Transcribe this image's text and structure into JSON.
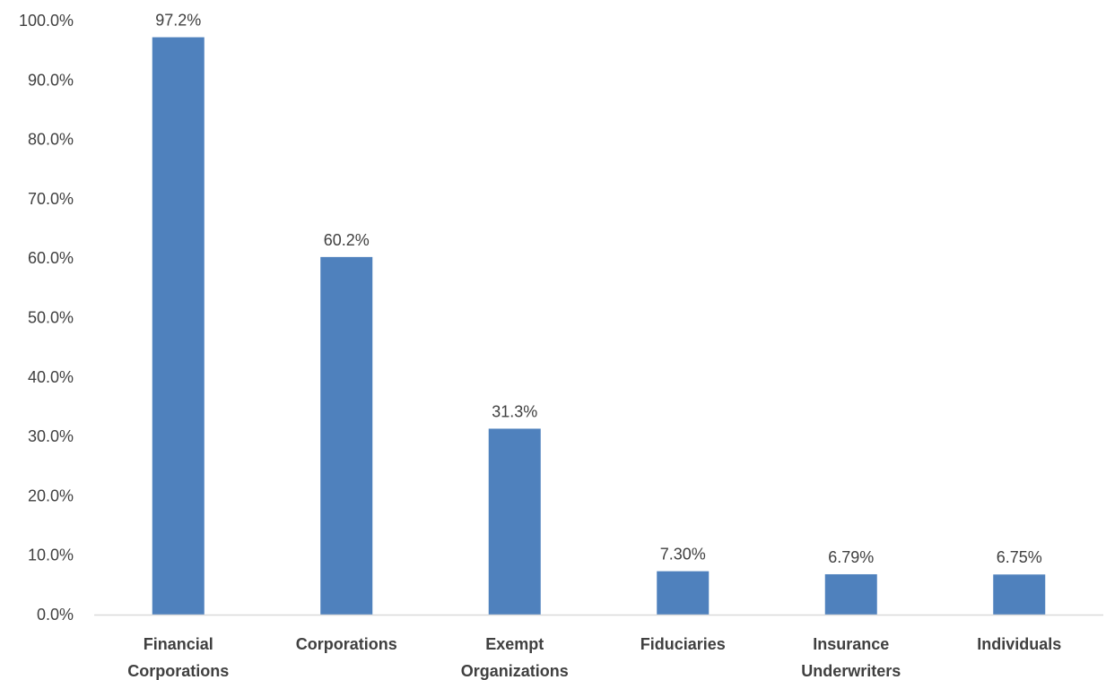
{
  "chart_data": {
    "type": "bar",
    "categories": [
      [
        "Financial",
        "Corporations"
      ],
      [
        "Corporations"
      ],
      [
        "Exempt",
        "Organizations"
      ],
      [
        "Fiduciaries"
      ],
      [
        "Insurance",
        "Underwriters"
      ],
      [
        "Individuals"
      ]
    ],
    "values": [
      97.2,
      60.2,
      31.3,
      7.3,
      6.79,
      6.75
    ],
    "data_labels": [
      "97.2%",
      "60.2%",
      "31.3%",
      "7.30%",
      "6.79%",
      "6.75%"
    ],
    "y_ticks": [
      0,
      10,
      20,
      30,
      40,
      50,
      60,
      70,
      80,
      90,
      100
    ],
    "y_tick_labels": [
      "0.0%",
      "10.0%",
      "20.0%",
      "30.0%",
      "40.0%",
      "50.0%",
      "60.0%",
      "70.0%",
      "80.0%",
      "90.0%",
      "100.0%"
    ],
    "ylim": [
      0,
      100
    ],
    "title": "",
    "xlabel": "",
    "ylabel": "",
    "grid": false,
    "legend": "none",
    "colors": {
      "bar": "#4f81bd",
      "axis": "#d9d9d9",
      "text": "#404040"
    }
  }
}
